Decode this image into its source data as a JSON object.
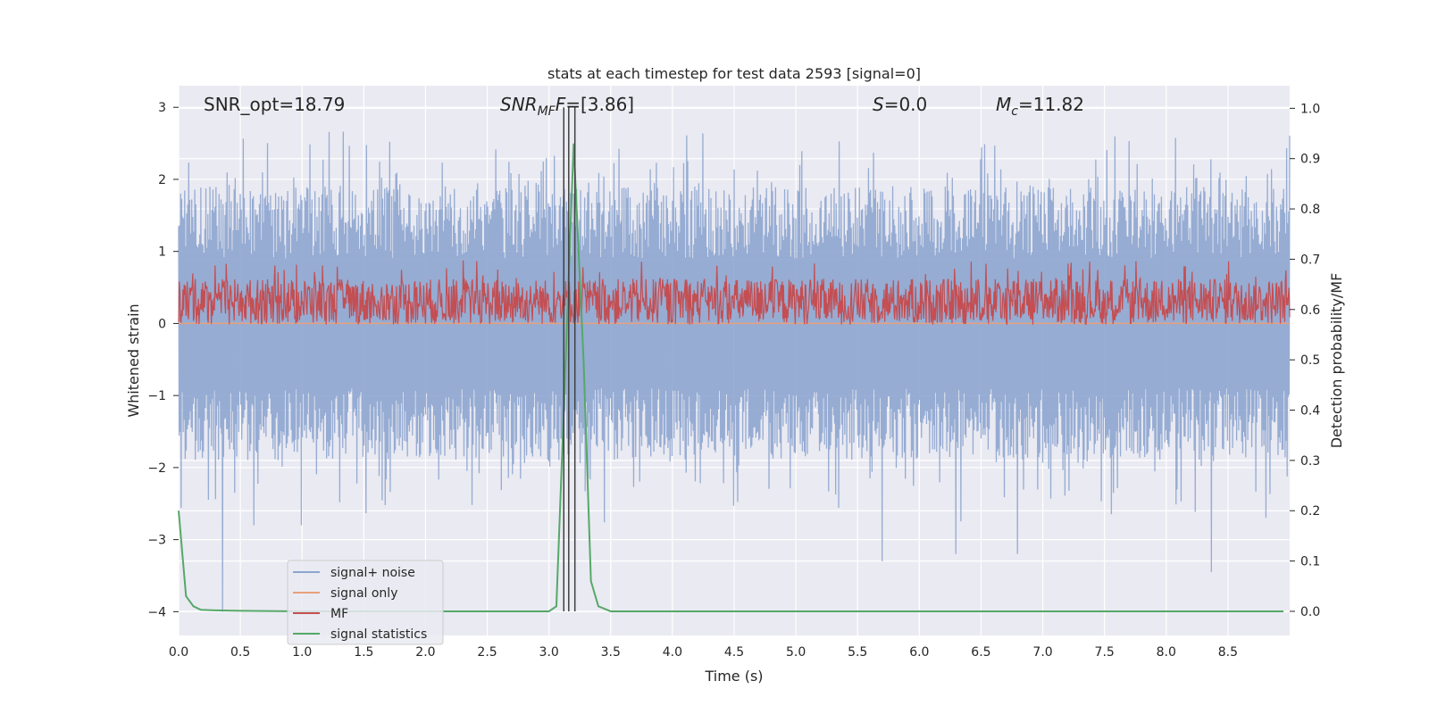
{
  "chart_data": {
    "type": "line",
    "title": "stats at each timestep for test data 2593 [signal=0]",
    "xlabel": "Time (s)",
    "ylabel": "Whitened strain",
    "ylabel_right": "Detection probability/MF",
    "xlim": [
      0.0,
      9.0
    ],
    "ylim": [
      -4.33,
      3.3
    ],
    "ylim_right": [
      -0.048,
      1.045
    ],
    "x_ticks": [
      "0.0",
      "0.5",
      "1.0",
      "1.5",
      "2.0",
      "2.5",
      "3.0",
      "3.5",
      "4.0",
      "4.5",
      "5.0",
      "5.5",
      "6.0",
      "6.5",
      "7.0",
      "7.5",
      "8.0",
      "8.5"
    ],
    "y_ticks": [
      "−4",
      "−3",
      "−2",
      "−1",
      "0",
      "1",
      "2",
      "3"
    ],
    "y_right_ticks": [
      "0.0",
      "0.1",
      "0.2",
      "0.3",
      "0.4",
      "0.5",
      "0.6",
      "0.7",
      "0.8",
      "0.9",
      "1.0"
    ],
    "grid": true,
    "legend_position": "lower-left",
    "annotations": {
      "snr_opt": "SNR_opt=18.79",
      "snr_mf_main": "SNR",
      "snr_mf_sub": "MF",
      "snr_mf_value": "=[3.86]",
      "s_symbol": "S",
      "s_value": "=0.0",
      "mc_main": "M",
      "mc_sub": "c",
      "mc_value": "=11.82"
    },
    "vertical_lines_x": [
      3.12,
      3.16,
      3.21
    ],
    "series": [
      {
        "name": "signal+ noise",
        "axis": "left",
        "color": "#8da5cf",
        "description_range": [
          -2.3,
          2.3
        ],
        "notable_minima": [
          {
            "x": 0.36,
            "y": -4.0
          },
          {
            "x": 0.61,
            "y": -2.8
          },
          {
            "x": 1.0,
            "y": -2.8
          },
          {
            "x": 5.7,
            "y": -3.3
          },
          {
            "x": 6.3,
            "y": -3.2
          },
          {
            "x": 6.8,
            "y": -3.2
          },
          {
            "x": 8.37,
            "y": -3.45
          }
        ]
      },
      {
        "name": "signal only",
        "axis": "left",
        "color": "#e8a07c",
        "values_constant": 0.0
      },
      {
        "name": "MF",
        "axis": "right",
        "color": "#c44e52",
        "range": [
          0.57,
          0.7
        ]
      },
      {
        "name": "signal statistics",
        "axis": "right",
        "color": "#55a868",
        "x": [
          0.0,
          0.06,
          0.12,
          0.18,
          0.3,
          0.5,
          1.0,
          2.0,
          2.5,
          3.0,
          3.06,
          3.12,
          3.2,
          3.28,
          3.34,
          3.4,
          3.5,
          4.0,
          5.0,
          6.0,
          7.0,
          8.0,
          8.95
        ],
        "values": [
          0.2,
          0.03,
          0.01,
          0.003,
          0.002,
          0.001,
          0.0,
          0.0,
          0.0,
          0.0,
          0.01,
          0.4,
          0.93,
          0.5,
          0.06,
          0.01,
          0.0,
          0.0,
          0.0,
          0.0,
          0.0,
          0.0,
          0.0
        ]
      }
    ]
  },
  "legend": {
    "items": [
      {
        "label": "signal+ noise",
        "color": "#8da5cf"
      },
      {
        "label": "signal only",
        "color": "#e8a07c"
      },
      {
        "label": "MF",
        "color": "#c44e52"
      },
      {
        "label": "signal statistics",
        "color": "#55a868"
      }
    ]
  }
}
